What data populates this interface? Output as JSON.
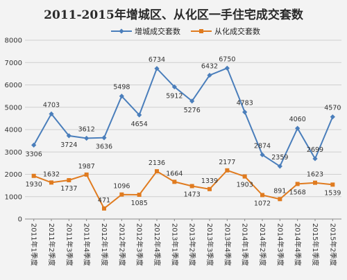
{
  "chart_data": {
    "type": "line",
    "title": "2011-2015年增城区、从化区一手住宅成交套数",
    "categories": [
      "2011年1季度",
      "2011年2季度",
      "2011年3季度",
      "2011年4季度",
      "2012年1季度",
      "2012年2季度",
      "2012年3季度",
      "2012年4季度",
      "2013年1季度",
      "2013年2季度",
      "2013年3季度",
      "2013年4季度",
      "2014年1季度",
      "2014年2季度",
      "2014年3季度",
      "2014年4季度",
      "2015年1季度",
      "2015年2季度"
    ],
    "ylim": [
      0,
      8000
    ],
    "yticks": [
      0,
      1000,
      2000,
      3000,
      4000,
      5000,
      6000,
      7000,
      8000
    ],
    "grid": true,
    "legend_position": "top",
    "series": [
      {
        "name": "增城成交套数",
        "color": "#4a7ebb",
        "marker": "diamond",
        "values": [
          3306,
          4703,
          3724,
          3612,
          3636,
          5498,
          4654,
          6734,
          5912,
          5276,
          6432,
          6750,
          4783,
          2874,
          2359,
          4060,
          2699,
          4570
        ]
      },
      {
        "name": "从化成交套数",
        "color": "#e07b1f",
        "marker": "square",
        "values": [
          1930,
          1632,
          1737,
          1987,
          471,
          1096,
          1085,
          2136,
          1664,
          1473,
          1339,
          2177,
          1903,
          1072,
          891,
          1568,
          1623,
          1539
        ]
      }
    ]
  }
}
